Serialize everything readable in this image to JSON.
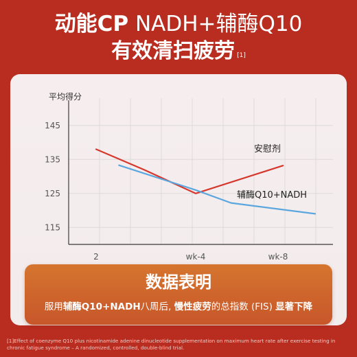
{
  "header": {
    "title_bold": "动能CP",
    "title_light": " NADH+辅酶Q10",
    "subtitle": "有效清扫疲劳",
    "subtitle_ref": "[1]"
  },
  "chart_data": {
    "type": "line",
    "title": "",
    "ylabel": "平均得分",
    "xlabel": "",
    "categories": [
      "2",
      "wk-4",
      "wk-8"
    ],
    "yticks": [
      115,
      125,
      135,
      145
    ],
    "ylim": [
      110,
      150
    ],
    "grid": true,
    "series": [
      {
        "name": "安慰剂",
        "color": "#d6372c",
        "points": [
          [
            0,
            138
          ],
          [
            0.48,
            132
          ],
          [
            1,
            125
          ],
          [
            2.06,
            133.2
          ]
        ]
      },
      {
        "name": "辅酶Q10+NADH",
        "color": "#5aa6de",
        "points": [
          [
            0.23,
            133.3
          ],
          [
            1,
            126
          ],
          [
            1.43,
            122.2
          ],
          [
            2.45,
            119
          ]
        ]
      }
    ]
  },
  "summary": {
    "title": "数据表明",
    "parts": [
      {
        "text": "服用",
        "bold": false
      },
      {
        "text": "辅酶Q10+NADH",
        "bold": true
      },
      {
        "text": "八周后, ",
        "bold": false
      },
      {
        "text": "慢性疲劳",
        "bold": true
      },
      {
        "text": "的总指数 (FIS) ",
        "bold": false
      },
      {
        "text": "显著下降",
        "bold": true
      }
    ]
  },
  "footnote": "[1]Effect of coenzyme Q10 plus nicotinamide adenine dinucleotide supplementation on maximum heart rate after exercise testing in chronic fatigue syndrome – A randomized, controlled, double-blind trial.",
  "colors": {
    "background": "#b92c20",
    "card": "#f5eeee",
    "summary": "#cf6a2d",
    "placebo": "#d6372c",
    "treatment": "#5aa6de"
  }
}
